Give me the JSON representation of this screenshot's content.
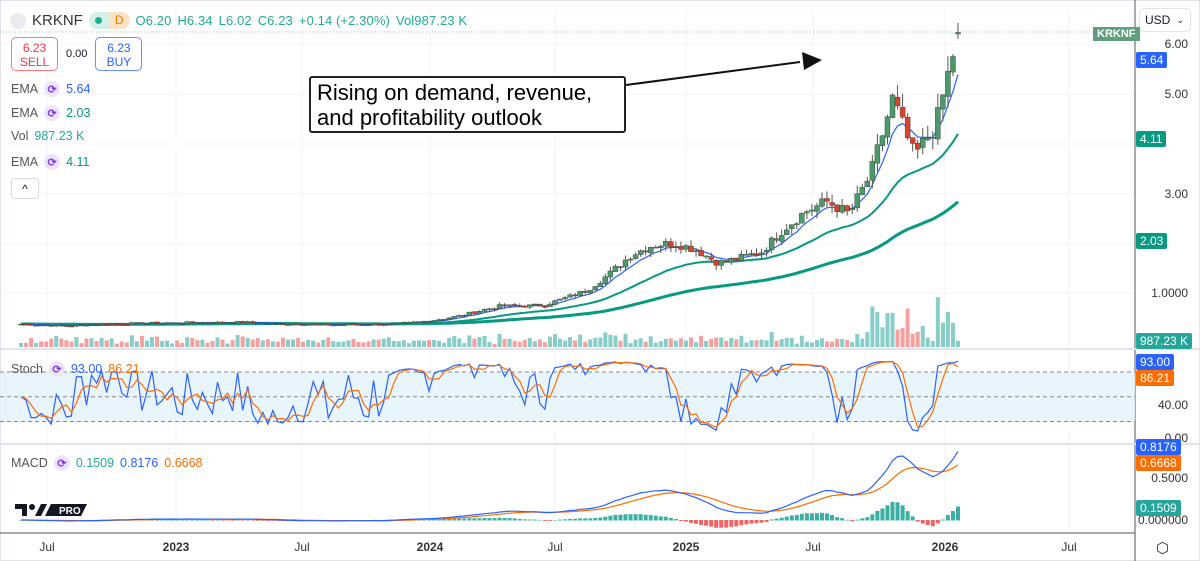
{
  "header": {
    "symbol": "KRKNF",
    "interval": "D",
    "open": "O6.20",
    "high": "H6.34",
    "low": "L6.02",
    "close": "C6.23",
    "change": "+0.14 (+2.30%)",
    "volume": "Vol987.23 K"
  },
  "trade": {
    "sell_price": "6.23",
    "sell_label": "SELL",
    "spread": "0.00",
    "buy_price": "6.23",
    "buy_label": "BUY"
  },
  "indicators": [
    {
      "name": "EMA",
      "value": "5.64",
      "color": "#2962ff"
    },
    {
      "name": "EMA",
      "value": "2.03",
      "color": "#089981"
    },
    {
      "name": "Vol",
      "value": "987.23 K",
      "color": "#22ab94"
    },
    {
      "name": "EMA",
      "value": "4.11",
      "color": "#089981"
    }
  ],
  "stoch": {
    "name": "Stoch",
    "k": "93.00",
    "d": "86.21",
    "k_color": "#2962ff",
    "d_color": "#ff6d00"
  },
  "macd": {
    "name": "MACD",
    "hist": "0.1509",
    "macd": "0.8176",
    "signal": "0.6668"
  },
  "annotation": {
    "line1": "Rising on demand, revenue,",
    "line2": "and profitability outlook"
  },
  "currency": "USD",
  "symbol_tag": "KRKNF",
  "price_axis": [
    "6.00",
    "5.00",
    "3.00",
    "1.0000"
  ],
  "stoch_axis": [
    "40.00",
    "0.00"
  ],
  "macd_axis": [
    "0.5000",
    "0.000000"
  ],
  "axis_tags": {
    "ema_short": "5.64",
    "ema_mid": "4.11",
    "ema_long": "2.03",
    "volume": "987.23 K",
    "stoch_k": "93.00",
    "stoch_d": "86.21",
    "macd": "0.8176",
    "signal": "0.6668",
    "hist": "0.1509"
  },
  "time_axis": [
    "Jul",
    "2023",
    "Jul",
    "2024",
    "Jul",
    "2025",
    "Jul",
    "2026",
    "Jul"
  ],
  "colors": {
    "up": "#26a69a",
    "down": "#ef5350",
    "candle_up": "#4c9a6a",
    "candle_down": "#d8432f",
    "ema_short": "#2962ff",
    "ema": "#089981",
    "stoch_k": "#2962ff",
    "stoch_d": "#ff6d00"
  },
  "chart_data": {
    "type": "candlestick",
    "title": "KRKNF",
    "interval": "weekly candles (approx.)",
    "x_monthly": [
      "2022-06",
      "2022-07",
      "2022-08",
      "2022-09",
      "2022-10",
      "2022-11",
      "2022-12",
      "2023-01",
      "2023-02",
      "2023-03",
      "2023-04",
      "2023-05",
      "2023-06",
      "2023-07",
      "2023-08",
      "2023-09",
      "2023-10",
      "2023-11",
      "2023-12",
      "2024-01",
      "2024-02",
      "2024-03",
      "2024-04",
      "2024-05",
      "2024-06",
      "2024-07",
      "2024-08",
      "2024-09",
      "2024-10",
      "2024-11",
      "2024-12",
      "2025-01",
      "2025-02",
      "2025-03",
      "2025-04",
      "2025-05",
      "2025-06",
      "2025-07",
      "2025-08",
      "2025-09",
      "2025-10",
      "2025-11",
      "2025-12",
      "2026-01"
    ],
    "close_monthly": [
      0.4,
      0.38,
      0.36,
      0.38,
      0.4,
      0.41,
      0.42,
      0.42,
      0.43,
      0.43,
      0.44,
      0.42,
      0.4,
      0.4,
      0.38,
      0.39,
      0.39,
      0.4,
      0.43,
      0.48,
      0.55,
      0.66,
      0.76,
      0.76,
      0.78,
      0.92,
      1.08,
      1.4,
      1.78,
      1.98,
      2.02,
      1.88,
      1.62,
      1.72,
      1.85,
      2.3,
      2.65,
      2.85,
      2.6,
      3.4,
      4.9,
      3.75,
      4.4,
      6.23
    ],
    "last": {
      "open": 6.2,
      "high": 6.34,
      "low": 6.02,
      "close": 6.23,
      "change": 0.14,
      "change_pct": 2.3,
      "volume_k": 987.23
    },
    "ema_values": [
      5.64,
      4.11,
      2.03
    ],
    "stoch_values": {
      "k": 93.0,
      "d": 86.21
    },
    "macd_values": {
      "macd": 0.8176,
      "signal": 0.6668,
      "hist": 0.1509
    },
    "price_ylim": [
      0.3,
      6.4
    ],
    "stoch_ylim": [
      0,
      100
    ],
    "macd_ylim": [
      -0.05,
      0.9
    ],
    "grid": true
  }
}
